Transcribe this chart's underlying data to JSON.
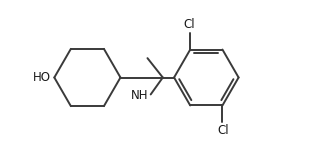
{
  "bg_color": "#ffffff",
  "line_color": "#3a3a3a",
  "text_color": "#1a1a1a",
  "line_width": 1.4,
  "font_size": 8.5,
  "figsize": [
    3.28,
    1.55
  ],
  "dpi": 100,
  "xlim": [
    -0.3,
    7.8
  ],
  "ylim": [
    -1.55,
    1.55
  ]
}
